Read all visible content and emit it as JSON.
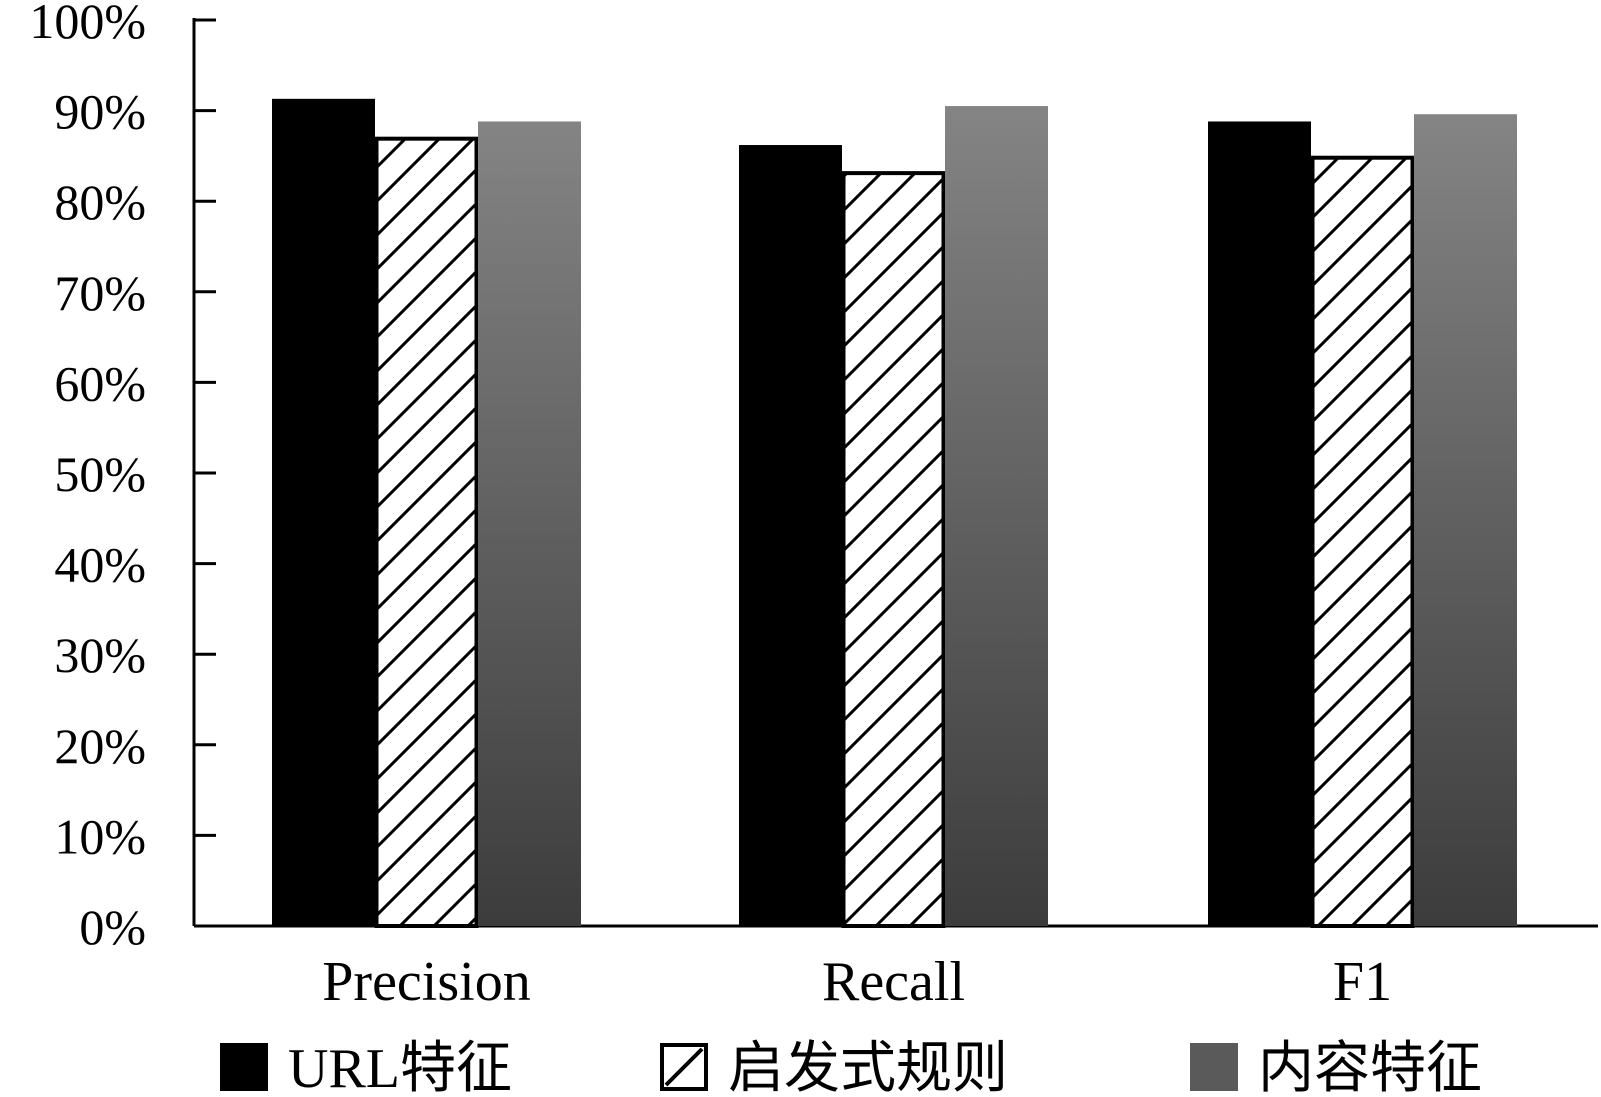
{
  "chart_data": {
    "type": "bar",
    "categories": [
      "Precision",
      "Recall",
      "F1"
    ],
    "series": [
      {
        "name": "URL特征",
        "values": [
          91.3,
          86.2,
          88.8
        ],
        "color": "#000000",
        "style": "solid"
      },
      {
        "name": "启发式规则",
        "values": [
          86.9,
          83.1,
          84.8
        ],
        "color": "#ffffff",
        "style": "hatched"
      },
      {
        "name": "内容特征",
        "values": [
          88.8,
          90.5,
          89.6
        ],
        "color": "#5a5a5a",
        "style": "gradient"
      }
    ],
    "yticks": [
      "0%",
      "10%",
      "20%",
      "30%",
      "40%",
      "50%",
      "60%",
      "70%",
      "80%",
      "90%",
      "100%"
    ],
    "ylim": [
      0,
      100
    ],
    "title": "",
    "xlabel": "",
    "ylabel": "",
    "grid": false,
    "legend_position": "bottom"
  },
  "colors": {
    "gradient_top": "#848484",
    "gradient_bottom": "#3c3c3c",
    "axis": "#000000"
  }
}
